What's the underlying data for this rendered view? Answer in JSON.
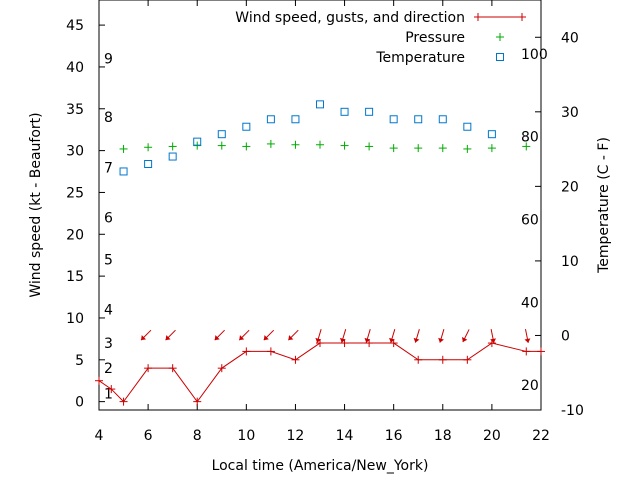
{
  "chart_data": {
    "type": "line",
    "xlabel": "Local time (America/New_York)",
    "ylabel": "Wind speed (kt - Beaufort)",
    "y2label": "Temperature (C - F)",
    "xlim": [
      4,
      22
    ],
    "ylim": [
      -1,
      48
    ],
    "y2lim": [
      -10,
      45
    ],
    "grid": false,
    "legend_position": "top-right",
    "x_ticks": [
      "4",
      "6",
      "8",
      "10",
      "12",
      "14",
      "16",
      "18",
      "20",
      "22"
    ],
    "y_ticks": [
      "0",
      "5",
      "10",
      "15",
      "20",
      "25",
      "30",
      "35",
      "40",
      "45"
    ],
    "y2_ticks": [
      "-10",
      "0",
      "10",
      "20",
      "30",
      "40"
    ],
    "fahrenheit_ticks": [
      "20",
      "40",
      "60",
      "80",
      "100"
    ],
    "beaufort_ticks": [
      "1",
      "2",
      "3",
      "4",
      "5",
      "6",
      "7",
      "8",
      "9"
    ],
    "series": [
      {
        "name": "Wind speed, gusts, and direction",
        "color": "#cc0000",
        "marker": "plus",
        "x": [
          4,
          4.5,
          5,
          6,
          7,
          8,
          9,
          10,
          11,
          12,
          13,
          14,
          15,
          16,
          17,
          18,
          19,
          20,
          21.4,
          22
        ],
        "y": [
          2.5,
          1.5,
          0,
          4,
          4,
          0,
          4,
          6,
          6,
          5,
          7,
          7,
          7,
          7,
          5,
          5,
          5,
          7,
          6,
          6
        ]
      },
      {
        "name": "Pressure",
        "color": "#00aa00",
        "marker": "plus",
        "x": [
          5,
          6,
          7,
          8,
          9,
          10,
          11,
          12,
          13,
          14,
          15,
          16,
          17,
          18,
          19,
          20,
          21.4
        ],
        "y": [
          30.2,
          30.4,
          30.5,
          30.6,
          30.6,
          30.5,
          30.8,
          30.7,
          30.7,
          30.6,
          30.5,
          30.3,
          30.3,
          30.3,
          30.2,
          30.3,
          30.5
        ]
      },
      {
        "name": "Temperature",
        "color": "#0077cc",
        "marker": "square",
        "axis": "right",
        "x": [
          5,
          6,
          7,
          8,
          9,
          10,
          11,
          12,
          13,
          14,
          15,
          16,
          17,
          18,
          19,
          20
        ],
        "y": [
          22,
          23,
          24,
          26,
          27,
          28,
          29,
          29,
          31,
          30,
          30,
          29,
          29,
          29,
          28,
          27
        ]
      }
    ],
    "wind_arrows": {
      "name": "Wind direction",
      "color": "#cc0000",
      "y": 8.2,
      "points": [
        {
          "x": 6,
          "dx": -1,
          "dy": -1
        },
        {
          "x": 7,
          "dx": -1,
          "dy": -1
        },
        {
          "x": 9,
          "dx": -1,
          "dy": -1
        },
        {
          "x": 10,
          "dx": -1,
          "dy": -1
        },
        {
          "x": 11,
          "dx": -1,
          "dy": -1
        },
        {
          "x": 12,
          "dx": -1,
          "dy": -1
        },
        {
          "x": 13,
          "dx": -0.3,
          "dy": -1
        },
        {
          "x": 14,
          "dx": -0.3,
          "dy": -1
        },
        {
          "x": 15,
          "dx": -0.3,
          "dy": -1
        },
        {
          "x": 16,
          "dx": -0.3,
          "dy": -1
        },
        {
          "x": 17,
          "dx": -0.3,
          "dy": -1
        },
        {
          "x": 18,
          "dx": -0.3,
          "dy": -1
        },
        {
          "x": 19,
          "dx": -0.5,
          "dy": -1
        },
        {
          "x": 20,
          "dx": 0.2,
          "dy": -1
        },
        {
          "x": 21.4,
          "dx": 0.2,
          "dy": -1
        }
      ]
    }
  }
}
